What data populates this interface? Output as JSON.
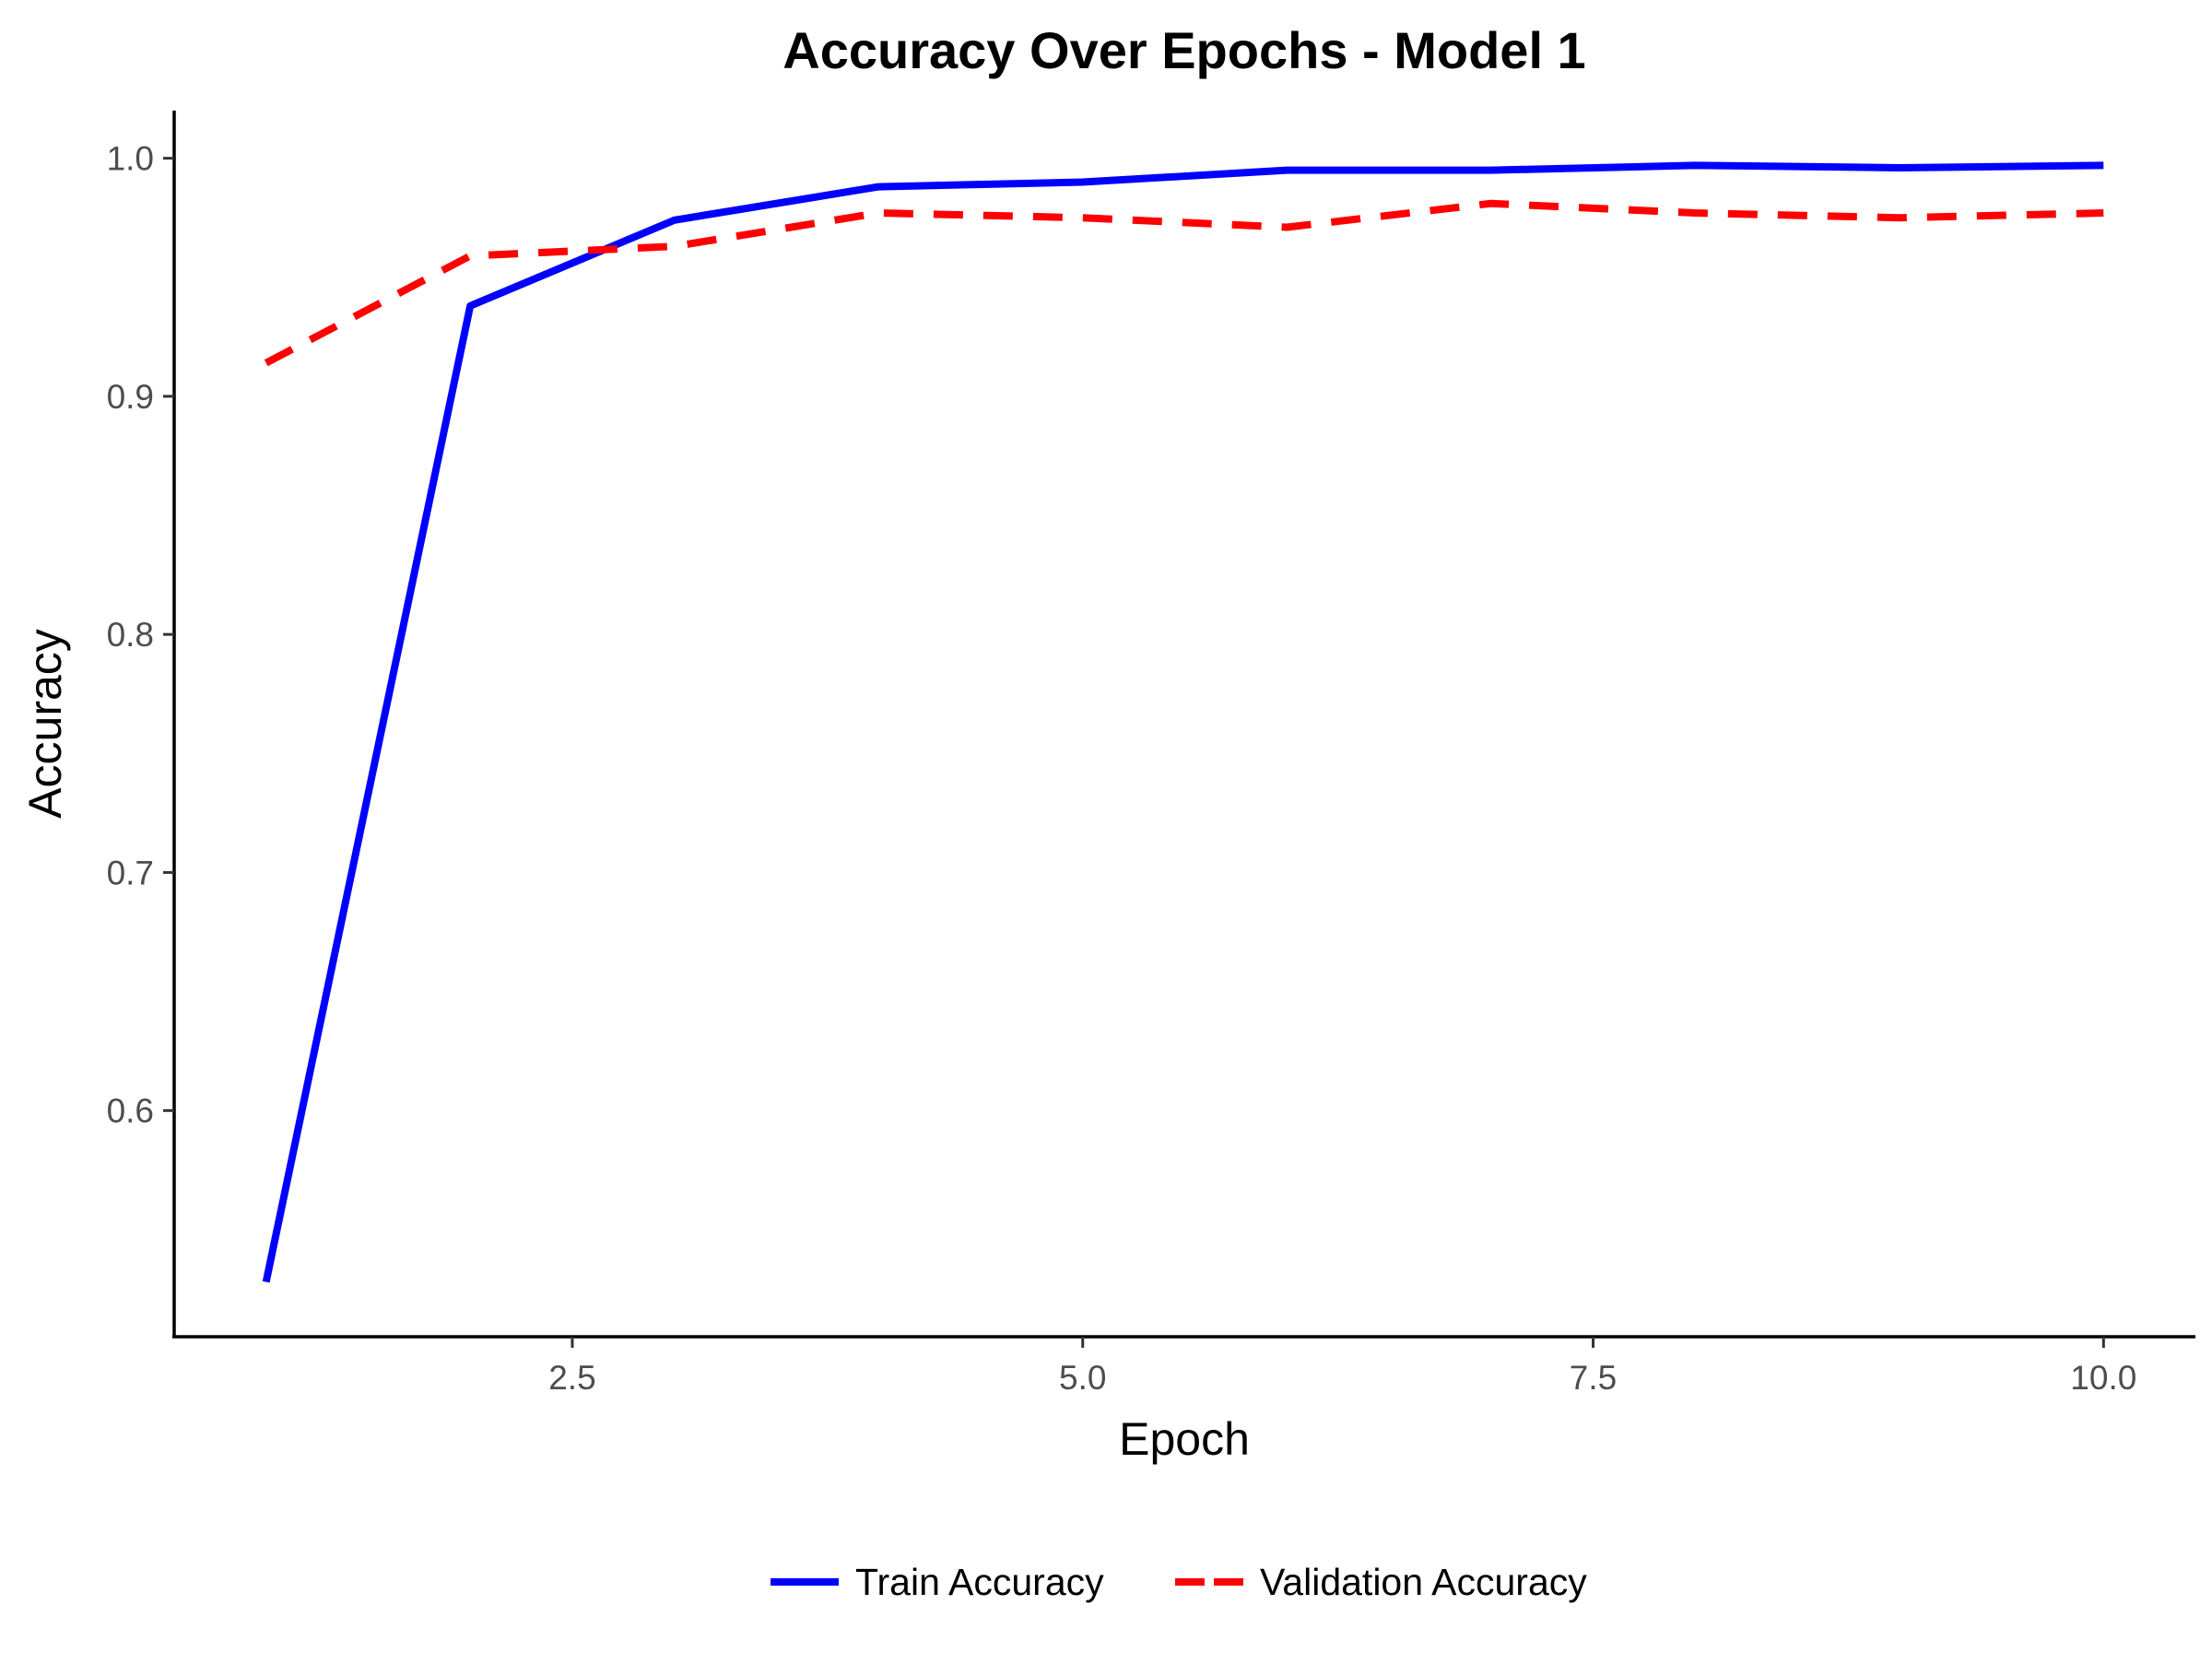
{
  "chart_data": {
    "type": "line",
    "title": "Accuracy Over Epochs - Model 1",
    "xlabel": "Epoch",
    "ylabel": "Accuracy",
    "x": [
      1,
      2,
      3,
      4,
      5,
      6,
      7,
      8,
      9,
      10
    ],
    "xlim": [
      0.55,
      10.45
    ],
    "ylim": [
      0.505,
      1.02
    ],
    "xticks": [
      2.5,
      5.0,
      7.5,
      10.0
    ],
    "xtick_labels": [
      "2.5",
      "5.0",
      "7.5",
      "10.0"
    ],
    "yticks": [
      0.6,
      0.7,
      0.8,
      0.9,
      1.0
    ],
    "ytick_labels": [
      "0.6",
      "0.7",
      "0.8",
      "0.9",
      "1.0"
    ],
    "grid": false,
    "legend_position": "bottom",
    "series": [
      {
        "name": "Train Accuracy",
        "color": "#0000FF",
        "line_style": "solid",
        "values": [
          0.528,
          0.938,
          0.974,
          0.988,
          0.99,
          0.995,
          0.995,
          0.997,
          0.996,
          0.997
        ]
      },
      {
        "name": "Validation Accuracy",
        "color": "#FF0000",
        "line_style": "dashed",
        "values": [
          0.914,
          0.959,
          0.963,
          0.977,
          0.975,
          0.971,
          0.981,
          0.977,
          0.975,
          0.977
        ]
      }
    ]
  }
}
